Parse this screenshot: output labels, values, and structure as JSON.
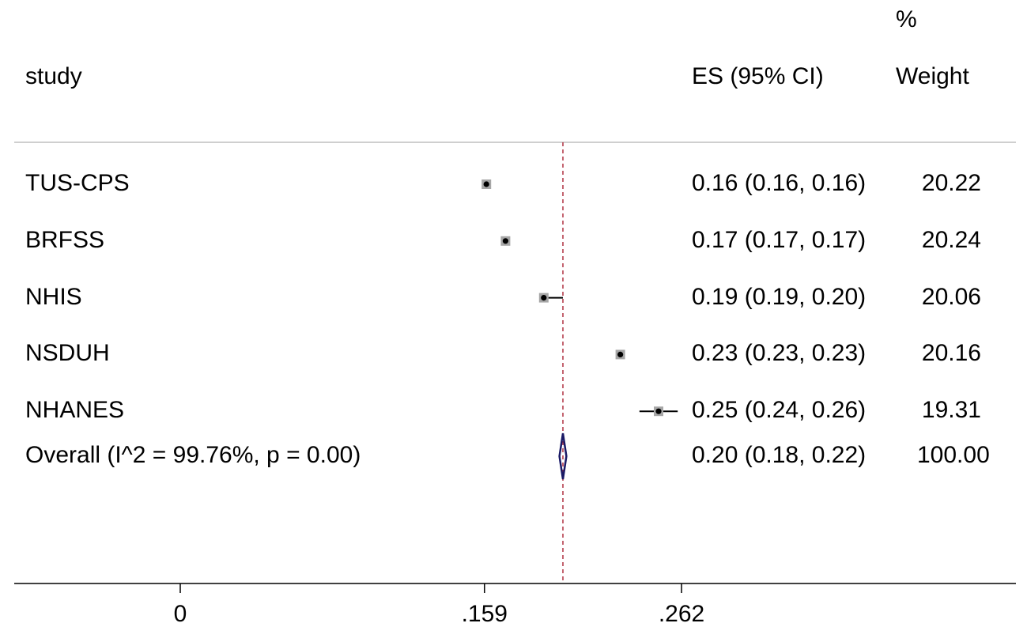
{
  "headers": {
    "study": "study",
    "es": "ES (95% CI)",
    "weight_top": "%",
    "weight_bottom": "Weight"
  },
  "chart_data": {
    "type": "forest",
    "xlim": [
      0,
      0.4
    ],
    "x_ticks": [
      {
        "value": 0,
        "label": "0"
      },
      {
        "value": 0.159,
        "label": ".159"
      },
      {
        "value": 0.262,
        "label": ".262"
      }
    ],
    "reference_line": 0.2,
    "rows": [
      {
        "study": "TUS-CPS",
        "es": 0.16,
        "lo": 0.16,
        "hi": 0.16,
        "es_text": "0.16 (0.16, 0.16)",
        "weight": 20.22,
        "weight_text": "20.22"
      },
      {
        "study": "BRFSS",
        "es": 0.17,
        "lo": 0.17,
        "hi": 0.17,
        "es_text": "0.17 (0.17, 0.17)",
        "weight": 20.24,
        "weight_text": "20.24"
      },
      {
        "study": "NHIS",
        "es": 0.19,
        "lo": 0.19,
        "hi": 0.2,
        "es_text": "0.19 (0.19, 0.20)",
        "weight": 20.06,
        "weight_text": "20.06"
      },
      {
        "study": "NSDUH",
        "es": 0.23,
        "lo": 0.23,
        "hi": 0.23,
        "es_text": "0.23 (0.23, 0.23)",
        "weight": 20.16,
        "weight_text": "20.16"
      },
      {
        "study": "NHANES",
        "es": 0.25,
        "lo": 0.24,
        "hi": 0.26,
        "es_text": "0.25 (0.24, 0.26)",
        "weight": 19.31,
        "weight_text": "19.31"
      }
    ],
    "overall": {
      "label": "Overall  (I^2 = 99.76%, p = 0.00)",
      "es": 0.2,
      "lo": 0.18,
      "hi": 0.22,
      "es_text": "0.20 (0.18, 0.22)",
      "weight_text": "100.00"
    },
    "colors": {
      "diamond": "#1a1a66",
      "reference": "#b03040",
      "box": "#a6a6a6",
      "point": "#000000",
      "rule": "#bfbfbf"
    }
  }
}
